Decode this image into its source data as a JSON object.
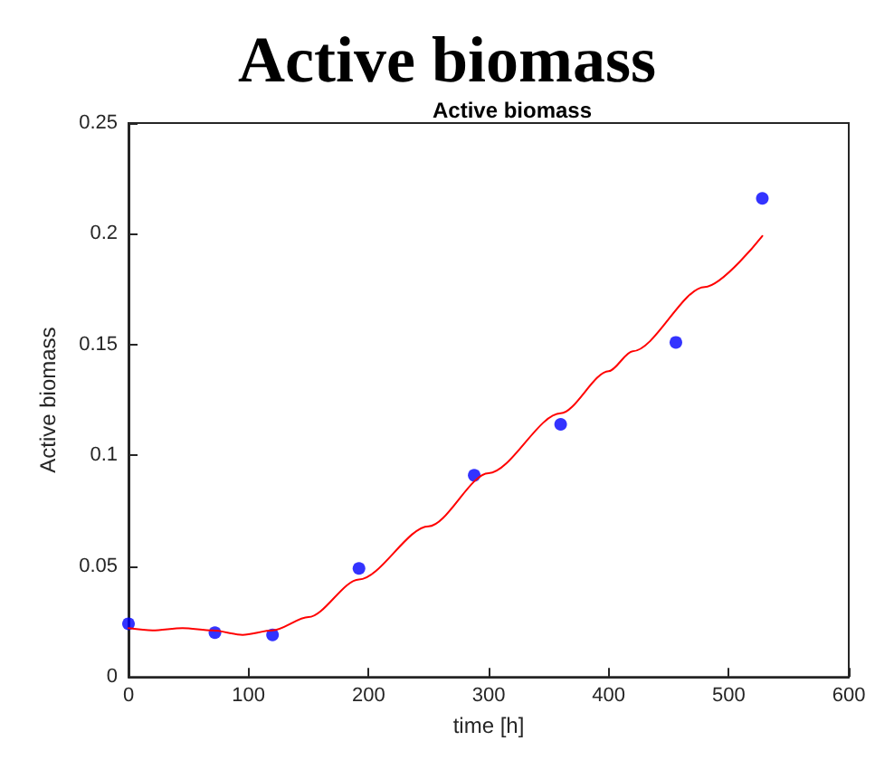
{
  "chart_data": {
    "type": "scatter",
    "title": "Active biomass",
    "subtitle": "Active biomass",
    "xlabel": "time [h]",
    "ylabel": "Active biomass",
    "xlim": [
      0,
      600
    ],
    "xticks": [
      0,
      100,
      200,
      300,
      400,
      500,
      600
    ],
    "ylim": [
      0,
      0.25
    ],
    "yticks": [
      0,
      0.05,
      0.1,
      0.15,
      0.2,
      0.25
    ],
    "grid": false,
    "marker": "circle",
    "series": [
      {
        "color": "#0000ff",
        "x": [
          0,
          72,
          120,
          192,
          288,
          360,
          456,
          528
        ],
        "values": [
          0.024,
          0.02,
          0.019,
          0.049,
          0.091,
          0.114,
          0.151,
          0.216
        ]
      },
      {
        "type": "line",
        "color": "#ff0000",
        "marker": "none",
        "line_style": "solid",
        "x": [
          0,
          20,
          45,
          70,
          95,
          120,
          150,
          192,
          250,
          300,
          360,
          400,
          420,
          480,
          528
        ],
        "values": [
          0.022,
          0.021,
          0.022,
          0.021,
          0.019,
          0.021,
          0.027,
          0.044,
          0.068,
          0.092,
          0.119,
          0.138,
          0.147,
          0.176,
          0.199
        ]
      }
    ]
  }
}
